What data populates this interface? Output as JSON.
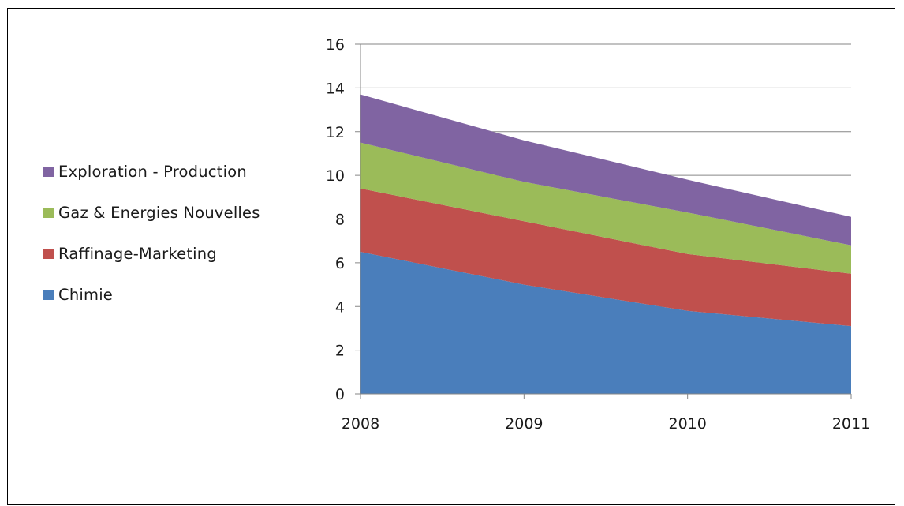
{
  "chart_data": {
    "type": "area",
    "stacked": true,
    "x": [
      "2008",
      "2009",
      "2010",
      "2011"
    ],
    "series": [
      {
        "name": "Chimie",
        "color": "#4a7ebb",
        "values": [
          6.5,
          5.0,
          3.8,
          3.1
        ]
      },
      {
        "name": "Raffinage-Marketing",
        "color": "#c0504d",
        "values": [
          2.9,
          2.9,
          2.6,
          2.4
        ]
      },
      {
        "name": "Gaz & Energies Nouvelles",
        "color": "#9bbb59",
        "values": [
          2.1,
          1.8,
          1.9,
          1.3
        ]
      },
      {
        "name": "Exploration - Production",
        "color": "#8064a2",
        "values": [
          2.2,
          1.9,
          1.5,
          1.3
        ]
      }
    ],
    "y_ticks": [
      "0",
      "2",
      "4",
      "6",
      "8",
      "10",
      "12",
      "14",
      "16"
    ],
    "ylim": [
      0,
      16
    ],
    "grid": true,
    "legend_position": "left",
    "legend_order": [
      "Exploration - Production",
      "Gaz & Energies Nouvelles",
      "Raffinage-Marketing",
      "Chimie"
    ],
    "title": "",
    "xlabel": "",
    "ylabel": ""
  }
}
